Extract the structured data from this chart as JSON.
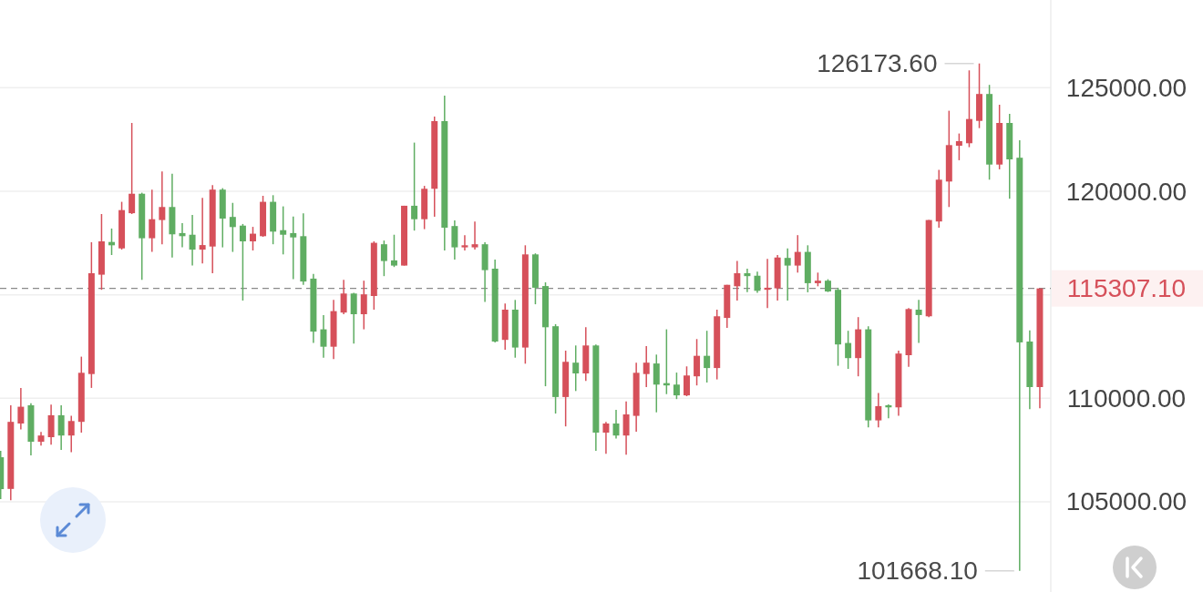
{
  "chart_data": {
    "type": "candlestick",
    "categories": [
      null,
      null,
      null,
      null,
      null,
      null,
      null,
      null,
      null,
      null,
      null,
      null,
      null,
      null,
      null,
      null,
      null,
      null,
      null,
      null,
      null,
      null,
      null,
      null,
      null,
      null,
      null,
      null,
      null,
      null,
      null,
      null,
      null,
      null,
      null,
      null,
      null,
      null,
      null,
      null,
      null,
      null,
      null,
      null,
      null,
      null,
      null,
      null,
      null,
      null,
      null,
      null,
      null,
      null,
      null,
      null,
      null,
      null,
      null,
      null,
      null,
      null,
      null,
      null,
      null,
      null,
      null,
      null,
      null,
      null,
      null,
      null,
      null,
      null,
      null,
      null,
      null,
      null,
      null,
      null,
      null,
      null,
      null,
      null,
      null,
      null,
      null,
      null,
      null,
      null,
      null,
      null,
      null,
      null,
      null,
      null,
      null,
      null,
      null,
      null,
      null,
      null,
      null,
      null
    ],
    "ohlc": [
      [
        107150,
        107460,
        105130,
        105610
      ],
      [
        105620,
        109660,
        105070,
        108860
      ],
      [
        108780,
        110500,
        108490,
        109590
      ],
      [
        109660,
        109760,
        107240,
        107900
      ],
      [
        107900,
        108370,
        107710,
        108200
      ],
      [
        108120,
        109690,
        107760,
        109180
      ],
      [
        109180,
        109660,
        107500,
        108200
      ],
      [
        108200,
        109150,
        107390,
        108900
      ],
      [
        108860,
        112010,
        108340,
        111230
      ],
      [
        111170,
        117540,
        110500,
        116040
      ],
      [
        115970,
        118900,
        115240,
        117580
      ],
      [
        117550,
        118200,
        116920,
        117390
      ],
      [
        117240,
        119490,
        117180,
        119090
      ],
      [
        118940,
        123300,
        118900,
        119880
      ],
      [
        119880,
        119930,
        115720,
        117730
      ],
      [
        117730,
        120080,
        117070,
        118650
      ],
      [
        118610,
        120960,
        117440,
        119240
      ],
      [
        119240,
        120850,
        116800,
        117920
      ],
      [
        117980,
        118460,
        117290,
        117830
      ],
      [
        117900,
        118860,
        116410,
        117180
      ],
      [
        117180,
        119680,
        116510,
        117400
      ],
      [
        117330,
        120300,
        116040,
        120080
      ],
      [
        120080,
        120150,
        117290,
        118680
      ],
      [
        118760,
        119440,
        117070,
        118270
      ],
      [
        118340,
        118420,
        114720,
        117580
      ],
      [
        117580,
        118280,
        117140,
        117950
      ],
      [
        117830,
        119780,
        117800,
        119490
      ],
      [
        119490,
        119810,
        117440,
        118050
      ],
      [
        118120,
        119270,
        116950,
        117900
      ],
      [
        117980,
        118780,
        115750,
        117770
      ],
      [
        117830,
        118930,
        115480,
        115640
      ],
      [
        115780,
        116010,
        112670,
        113220
      ],
      [
        113330,
        114020,
        111960,
        112490
      ],
      [
        112490,
        114750,
        111890,
        114210
      ],
      [
        114140,
        115720,
        114060,
        115060
      ],
      [
        115060,
        115090,
        112640,
        114060
      ],
      [
        114060,
        115680,
        113330,
        115020
      ],
      [
        114940,
        117580,
        114280,
        117510
      ],
      [
        117440,
        117620,
        115900,
        116630
      ],
      [
        116660,
        117900,
        116340,
        116410
      ],
      [
        116410,
        119300,
        116410,
        119300
      ],
      [
        119300,
        122350,
        118100,
        118650
      ],
      [
        118650,
        120260,
        118170,
        120120
      ],
      [
        120120,
        123610,
        118770,
        123390
      ],
      [
        123390,
        124620,
        117140,
        118240
      ],
      [
        118320,
        118590,
        116700,
        117290
      ],
      [
        117290,
        117880,
        117140,
        117390
      ],
      [
        117290,
        118540,
        117180,
        117440
      ],
      [
        117440,
        117540,
        114650,
        116190
      ],
      [
        116260,
        116700,
        112700,
        112740
      ],
      [
        112820,
        114580,
        112340,
        114280
      ],
      [
        114280,
        114750,
        111960,
        112450
      ],
      [
        112450,
        117390,
        111670,
        116950
      ],
      [
        116950,
        117000,
        114540,
        115340
      ],
      [
        115420,
        115600,
        110580,
        113430
      ],
      [
        113480,
        113580,
        109260,
        110060
      ],
      [
        110060,
        112300,
        108640,
        111760
      ],
      [
        111720,
        112550,
        110350,
        111200
      ],
      [
        111200,
        113430,
        110840,
        112550
      ],
      [
        112550,
        112600,
        107460,
        108340
      ],
      [
        108340,
        108860,
        107320,
        108780
      ],
      [
        108780,
        109440,
        108050,
        108200
      ],
      [
        108200,
        109850,
        107270,
        109220
      ],
      [
        109150,
        111720,
        108380,
        111230
      ],
      [
        111170,
        112520,
        110540,
        111720
      ],
      [
        111680,
        112110,
        109320,
        110660
      ],
      [
        110730,
        113330,
        110200,
        110620
      ],
      [
        110660,
        111240,
        109960,
        110140
      ],
      [
        110140,
        111540,
        110100,
        111100
      ],
      [
        111060,
        112860,
        110620,
        112050
      ],
      [
        112050,
        113260,
        110760,
        111460
      ],
      [
        111460,
        114280,
        110910,
        113960
      ],
      [
        113880,
        115480,
        113400,
        115480
      ],
      [
        115410,
        116630,
        114720,
        116040
      ],
      [
        116040,
        116260,
        115130,
        115900
      ],
      [
        115920,
        116120,
        115090,
        115190
      ],
      [
        115240,
        116730,
        114360,
        115340
      ],
      [
        115310,
        116920,
        114720,
        116800
      ],
      [
        116780,
        117240,
        114720,
        116410
      ],
      [
        116410,
        117880,
        116070,
        117070
      ],
      [
        117070,
        117390,
        115120,
        115560
      ],
      [
        115560,
        116070,
        115410,
        115680
      ],
      [
        115680,
        115750,
        115130,
        115160
      ],
      [
        115240,
        115340,
        111570,
        112600
      ],
      [
        112670,
        113260,
        111420,
        111940
      ],
      [
        111940,
        113920,
        111060,
        113330
      ],
      [
        113330,
        113480,
        108590,
        108930
      ],
      [
        108930,
        110250,
        108590,
        109620
      ],
      [
        109660,
        109700,
        109030,
        109560
      ],
      [
        109560,
        112300,
        109150,
        112160
      ],
      [
        112080,
        114360,
        111520,
        114310
      ],
      [
        114280,
        114750,
        112670,
        114020
      ],
      [
        113960,
        118610,
        113920,
        118610
      ],
      [
        118540,
        121030,
        118240,
        120560
      ],
      [
        120470,
        123890,
        119240,
        122230
      ],
      [
        122200,
        122790,
        121500,
        122420
      ],
      [
        122320,
        125840,
        122130,
        123490
      ],
      [
        123400,
        126173.6,
        123050,
        124700
      ],
      [
        124700,
        125140,
        120560,
        121290
      ],
      [
        121290,
        124180,
        121060,
        123300
      ],
      [
        123300,
        123740,
        119640,
        121540
      ],
      [
        121620,
        122460,
        101668.1,
        112700
      ],
      [
        112740,
        113280,
        109470,
        110540
      ],
      [
        110540,
        115307.1,
        109520,
        115307.1
      ]
    ],
    "colors": [
      "#5fad62",
      "#d6505a",
      "#d6505a",
      "#5fad62",
      "#d6505a",
      "#d6505a",
      "#5fad62",
      "#d6505a",
      "#d6505a",
      "#d6505a",
      "#d6505a",
      "#5fad62",
      "#d6505a",
      "#d6505a",
      "#5fad62",
      "#d6505a",
      "#d6505a",
      "#5fad62",
      "#5fad62",
      "#5fad62",
      "#d6505a",
      "#d6505a",
      "#5fad62",
      "#5fad62",
      "#5fad62",
      "#d6505a",
      "#d6505a",
      "#5fad62",
      "#5fad62",
      "#5fad62",
      "#5fad62",
      "#5fad62",
      "#5fad62",
      "#d6505a",
      "#d6505a",
      "#5fad62",
      "#d6505a",
      "#d6505a",
      "#5fad62",
      "#5fad62",
      "#d6505a",
      "#5fad62",
      "#d6505a",
      "#d6505a",
      "#5fad62",
      "#5fad62",
      "#d6505a",
      "#d6505a",
      "#5fad62",
      "#5fad62",
      "#d6505a",
      "#5fad62",
      "#d6505a",
      "#5fad62",
      "#5fad62",
      "#5fad62",
      "#d6505a",
      "#5fad62",
      "#d6505a",
      "#5fad62",
      "#d6505a",
      "#5fad62",
      "#d6505a",
      "#d6505a",
      "#d6505a",
      "#5fad62",
      "#5fad62",
      "#5fad62",
      "#d6505a",
      "#d6505a",
      "#5fad62",
      "#d6505a",
      "#d6505a",
      "#d6505a",
      "#5fad62",
      "#5fad62",
      "#d6505a",
      "#d6505a",
      "#5fad62",
      "#d6505a",
      "#5fad62",
      "#d6505a",
      "#5fad62",
      "#5fad62",
      "#5fad62",
      "#d6505a",
      "#5fad62",
      "#d6505a",
      "#5fad62",
      "#d6505a",
      "#d6505a",
      "#5fad62",
      "#d6505a",
      "#d6505a",
      "#d6505a",
      "#d6505a",
      "#d6505a",
      "#d6505a",
      "#5fad62",
      "#d6505a",
      "#5fad62",
      "#5fad62",
      "#5fad62",
      "#d6505a"
    ],
    "ylim": [
      100640,
      129240
    ],
    "yticks": [
      {
        "value": 105000,
        "label": "105000.00"
      },
      {
        "value": 110000,
        "label": "110000.00"
      },
      {
        "value": 115000,
        "label": null
      },
      {
        "value": 120000,
        "label": "120000.00"
      },
      {
        "value": 125000,
        "label": "125000.00"
      }
    ],
    "grid": "y",
    "ref_lines": [
      {
        "axis": "y",
        "value": 115307.1,
        "label": "115307.10",
        "color": "#8a8a8a",
        "line_style": "dashed"
      }
    ],
    "annotations": [
      "126173.60",
      "101668.10"
    ]
  }
}
